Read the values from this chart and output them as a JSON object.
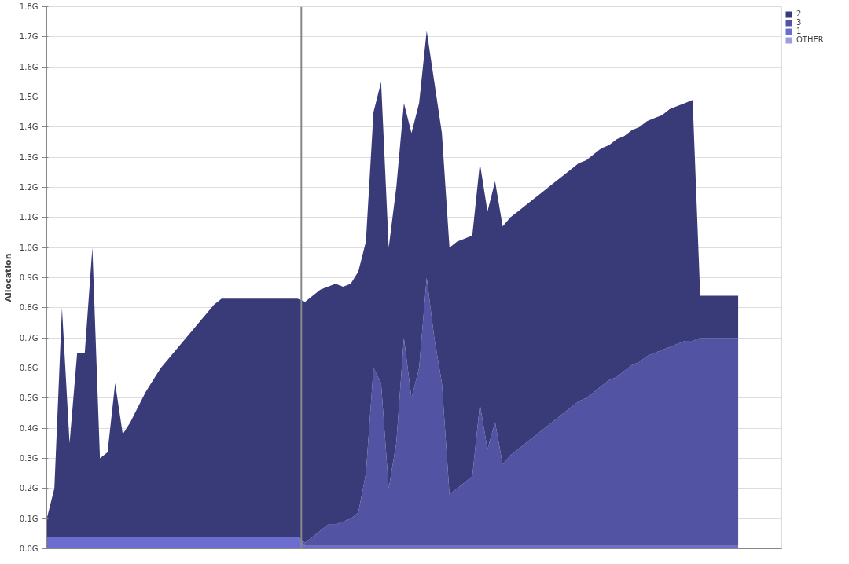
{
  "chart_data": {
    "type": "area",
    "stacked": true,
    "ylabel": "Allocation",
    "categories": [
      null,
      null,
      null,
      null,
      null,
      null,
      null,
      null,
      null,
      null,
      null,
      null,
      null,
      null,
      null,
      null,
      null,
      null,
      null,
      null,
      null,
      null,
      null,
      null,
      null,
      null,
      null,
      null,
      null,
      null,
      null,
      null,
      null,
      null,
      null,
      null,
      null,
      null,
      null,
      null,
      null,
      null,
      null,
      null,
      null,
      null,
      null,
      null,
      null,
      null,
      null,
      null,
      null,
      null,
      null,
      null,
      null,
      null,
      null,
      null,
      null,
      null,
      null,
      null,
      null,
      null,
      null,
      null,
      null,
      null,
      null,
      null,
      null,
      null,
      null,
      null,
      null,
      null,
      null,
      null,
      null,
      null,
      null,
      null,
      null,
      null,
      null,
      null,
      null,
      null,
      null,
      null
    ],
    "ylim": [
      0,
      1.8
    ],
    "yticks": [
      {
        "value": 0,
        "label": "0.0G"
      },
      {
        "value": 0.1,
        "label": "0.1G"
      },
      {
        "value": 0.2,
        "label": "0.2G"
      },
      {
        "value": 0.3,
        "label": "0.3G"
      },
      {
        "value": 0.4,
        "label": "0.4G"
      },
      {
        "value": 0.5,
        "label": "0.5G"
      },
      {
        "value": 0.6,
        "label": "0.6G"
      },
      {
        "value": 0.7,
        "label": "0.7G"
      },
      {
        "value": 0.8,
        "label": "0.8G"
      },
      {
        "value": 0.9,
        "label": "0.9G"
      },
      {
        "value": 1.0,
        "label": "1.0G"
      },
      {
        "value": 1.1,
        "label": "1.1G"
      },
      {
        "value": 1.2,
        "label": "1.2G"
      },
      {
        "value": 1.3,
        "label": "1.3G"
      },
      {
        "value": 1.4,
        "label": "1.4G"
      },
      {
        "value": 1.5,
        "label": "1.5G"
      },
      {
        "value": 1.6,
        "label": "1.6G"
      },
      {
        "value": 1.7,
        "label": "1.7G"
      },
      {
        "value": 1.8,
        "label": "1.8G"
      }
    ],
    "grid": "y",
    "legend": "top right",
    "tick_labels": "y",
    "series": [
      {
        "name": "OTHER",
        "color": "#9c9ede",
        "values": [
          null,
          null,
          null,
          null,
          null,
          null,
          null,
          null,
          null,
          null,
          null,
          null,
          null,
          null,
          null,
          null,
          null,
          null,
          null,
          null,
          null,
          null,
          null,
          null,
          null,
          null,
          null,
          null,
          null,
          null,
          null,
          null,
          null,
          null,
          null,
          null,
          null,
          null,
          null,
          null,
          null,
          null,
          null,
          null,
          null,
          null,
          null,
          null,
          null,
          null,
          null,
          null,
          null,
          null,
          null,
          null,
          null,
          null,
          null,
          null,
          null,
          null,
          null,
          null,
          null,
          null,
          null,
          null,
          null,
          null,
          null,
          null,
          null,
          null,
          null,
          null,
          null,
          null,
          null,
          null,
          null,
          null,
          null,
          null,
          null,
          null,
          null,
          null,
          null,
          null,
          null,
          null
        ]
      },
      {
        "name": "1",
        "color": "#6b6ecf",
        "values": [
          0.04,
          0.04,
          0.04,
          0.04,
          0.04,
          0.04,
          0.04,
          0.04,
          0.04,
          0.04,
          0.04,
          0.04,
          0.04,
          0.04,
          0.04,
          0.04,
          0.04,
          0.04,
          0.04,
          0.04,
          0.04,
          0.04,
          0.04,
          0.04,
          0.04,
          0.04,
          0.04,
          0.04,
          0.04,
          0.04,
          0.04,
          0.04,
          0.04,
          0.04,
          0.01,
          0.01,
          0.01,
          0.01,
          0.01,
          0.01,
          0.01,
          0.01,
          0.01,
          0.01,
          0.01,
          0.01,
          0.01,
          0.01,
          0.01,
          0.01,
          0.01,
          0.01,
          0.01,
          0.01,
          0.01,
          0.01,
          0.01,
          0.01,
          0.01,
          0.01,
          0.01,
          0.01,
          0.01,
          0.01,
          0.01,
          0.01,
          0.01,
          0.01,
          0.01,
          0.01,
          0.01,
          0.01,
          0.01,
          0.01,
          0.01,
          0.01,
          0.01,
          0.01,
          0.01,
          0.01,
          0.01,
          0.01,
          0.01,
          0.01,
          0.01,
          0.01,
          0.01,
          0.01,
          0.01,
          0.01,
          0.01,
          0.01
        ]
      },
      {
        "name": "3",
        "color": "#5254a3",
        "values": [
          0,
          0,
          0,
          0,
          0,
          0,
          0,
          0,
          0,
          0,
          0,
          0,
          0,
          0,
          0,
          0,
          0,
          0,
          0,
          0,
          0,
          0,
          0,
          0,
          0,
          0,
          0,
          0,
          0,
          0,
          0,
          0,
          0,
          0,
          0.01,
          0.03,
          0.05,
          0.07,
          0.07,
          0.08,
          0.09,
          0.11,
          0.24,
          0.59,
          0.54,
          0.19,
          0.34,
          0.69,
          0.49,
          0.59,
          0.89,
          0.69,
          0.54,
          0.17,
          0.19,
          0.21,
          0.23,
          0.47,
          0.32,
          0.41,
          0.27,
          0.3,
          0.32,
          0.34,
          0.36,
          0.38,
          0.4,
          0.42,
          0.44,
          0.46,
          0.48,
          0.49,
          0.51,
          0.53,
          0.55,
          0.56,
          0.58,
          0.6,
          0.61,
          0.63,
          0.64,
          0.65,
          0.66,
          0.67,
          0.68,
          0.68,
          0.69,
          0.69,
          0.69,
          0.69,
          0.69,
          0.69
        ]
      },
      {
        "name": "2",
        "color": "#393b79",
        "values": [
          0.06,
          0.16,
          0.76,
          0.31,
          0.61,
          0.61,
          0.96,
          0.26,
          0.28,
          0.51,
          0.34,
          0.38,
          0.43,
          0.48,
          0.52,
          0.56,
          0.59,
          0.62,
          0.65,
          0.68,
          0.71,
          0.74,
          0.77,
          0.79,
          0.79,
          0.79,
          0.79,
          0.79,
          0.79,
          0.79,
          0.79,
          0.79,
          0.79,
          0.79,
          0.8,
          0.8,
          0.8,
          0.79,
          0.8,
          0.78,
          0.78,
          0.8,
          0.77,
          0.85,
          1.0,
          0.8,
          0.85,
          0.78,
          0.88,
          0.88,
          0.82,
          0.85,
          0.83,
          0.82,
          0.82,
          0.81,
          0.8,
          0.8,
          0.79,
          0.8,
          0.79,
          0.79,
          0.79,
          0.79,
          0.79,
          0.79,
          0.79,
          0.79,
          0.79,
          0.79,
          0.79,
          0.79,
          0.79,
          0.79,
          0.78,
          0.79,
          0.78,
          0.78,
          0.78,
          0.78,
          0.78,
          0.78,
          0.79,
          0.79,
          0.79,
          0.8,
          0.14,
          0.14,
          0.14,
          0.14,
          0.14,
          0.14
        ]
      }
    ]
  }
}
